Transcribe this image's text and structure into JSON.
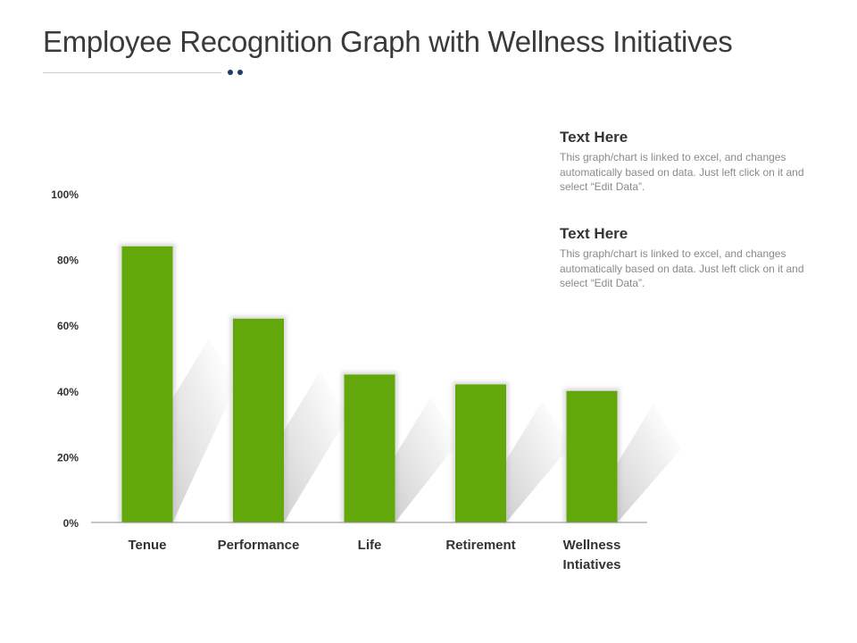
{
  "title": "Employee Recognition Graph with Wellness Initiatives",
  "notes": [
    {
      "heading": "Text Here",
      "body": "This graph/chart is linked to excel, and changes automatically based on data. Just left click on it and select “Edit Data”."
    },
    {
      "heading": "Text Here",
      "body": "This graph/chart is linked to excel, and changes automatically based on data. Just left click on it and select “Edit Data”."
    }
  ],
  "colors": {
    "bar": "#63a80a",
    "accent_dot": "#1f3a6b"
  },
  "chart_data": {
    "type": "bar",
    "categories": [
      "Tenue",
      "Performance",
      "Life",
      "Retirement",
      "Wellness Intiatives"
    ],
    "values": [
      84,
      62,
      45,
      42,
      40
    ],
    "ylim": [
      0,
      100
    ],
    "yticks": [
      "0%",
      "20%",
      "40%",
      "60%",
      "80%",
      "100%"
    ],
    "ytick_values": [
      0,
      20,
      40,
      60,
      80,
      100
    ],
    "grid": false,
    "legend": "none"
  }
}
